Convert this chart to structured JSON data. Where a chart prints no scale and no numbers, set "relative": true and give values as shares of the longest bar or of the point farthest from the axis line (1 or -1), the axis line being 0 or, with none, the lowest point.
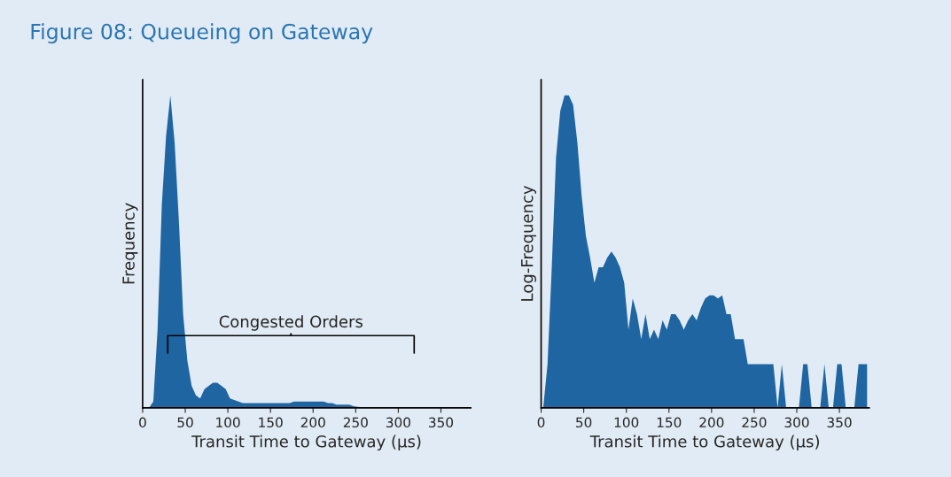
{
  "chart_data": [
    {
      "type": "area",
      "title": "Figure 08: Queueing on Gateway",
      "relative": true,
      "color": "#1f65a2",
      "x": [
        2.5,
        7.5,
        12.5,
        17.5,
        22.5,
        27.5,
        32.5,
        37.5,
        42.5,
        47.5,
        52.5,
        57.5,
        62.5,
        67.5,
        72.5,
        77.5,
        82.5,
        87.5,
        92.5,
        97.5,
        102.5,
        107.5,
        112.5,
        117.5,
        122.5,
        127.5,
        132.5,
        137.5,
        142.5,
        147.5,
        152.5,
        157.5,
        162.5,
        167.5,
        172.5,
        177.5,
        182.5,
        187.5,
        192.5,
        197.5,
        202.5,
        207.5,
        212.5,
        217.5,
        222.5,
        227.5,
        232.5,
        237.5,
        242.5,
        247.5,
        252.5,
        257.5,
        262.5,
        267.5,
        272.5,
        277.5,
        282.5,
        287.5,
        292.5,
        297.5,
        302.5,
        307.5,
        312.5,
        317.5,
        322.5,
        327.5,
        332.5,
        337.5,
        342.5,
        347.5,
        352.5,
        357.5,
        362.5,
        367.5,
        372.5,
        377.5,
        382.5
      ],
      "values": [
        0,
        0,
        0.02,
        0.25,
        0.65,
        0.87,
        1.0,
        0.85,
        0.6,
        0.3,
        0.15,
        0.07,
        0.04,
        0.03,
        0.06,
        0.07,
        0.08,
        0.08,
        0.07,
        0.06,
        0.03,
        0.025,
        0.02,
        0.015,
        0.015,
        0.015,
        0.015,
        0.015,
        0.015,
        0.015,
        0.015,
        0.015,
        0.015,
        0.015,
        0.015,
        0.02,
        0.02,
        0.02,
        0.02,
        0.02,
        0.02,
        0.02,
        0.02,
        0.015,
        0.015,
        0.01,
        0.01,
        0.01,
        0.01,
        0.005,
        0.003,
        0.002,
        0.002,
        0.002,
        0.001,
        0,
        0,
        0,
        0,
        0,
        0,
        0,
        0,
        0,
        0,
        0,
        0,
        0,
        0,
        0,
        0,
        0,
        0,
        0,
        0,
        0,
        0
      ],
      "xlabel": "Transit Time to Gateway (µs)",
      "ylabel": "Frequency",
      "xlim": [
        0,
        385
      ],
      "xticks": [
        0,
        50,
        100,
        150,
        200,
        250,
        300,
        350
      ],
      "annotations": [
        "Congested Orders"
      ]
    },
    {
      "type": "area",
      "relative": true,
      "color": "#1f65a2",
      "x": [
        2.5,
        7.5,
        12.5,
        17.5,
        22.5,
        27.5,
        32.5,
        37.5,
        42.5,
        47.5,
        52.5,
        57.5,
        62.5,
        67.5,
        72.5,
        77.5,
        82.5,
        87.5,
        92.5,
        97.5,
        102.5,
        107.5,
        112.5,
        117.5,
        122.5,
        127.5,
        132.5,
        137.5,
        142.5,
        147.5,
        152.5,
        157.5,
        162.5,
        167.5,
        172.5,
        177.5,
        182.5,
        187.5,
        192.5,
        197.5,
        202.5,
        207.5,
        212.5,
        217.5,
        222.5,
        227.5,
        232.5,
        237.5,
        242.5,
        247.5,
        252.5,
        257.5,
        262.5,
        267.5,
        272.5,
        277.5,
        282.5,
        287.5,
        292.5,
        297.5,
        302.5,
        307.5,
        312.5,
        317.5,
        322.5,
        327.5,
        332.5,
        337.5,
        342.5,
        347.5,
        352.5,
        357.5,
        362.5,
        367.5,
        372.5,
        377.5,
        382.5
      ],
      "values": [
        0,
        0.14,
        0.45,
        0.8,
        0.95,
        1.0,
        1.0,
        0.97,
        0.85,
        0.68,
        0.55,
        0.48,
        0.4,
        0.45,
        0.45,
        0.48,
        0.5,
        0.48,
        0.45,
        0.4,
        0.25,
        0.35,
        0.3,
        0.22,
        0.3,
        0.22,
        0.25,
        0.22,
        0.28,
        0.25,
        0.3,
        0.3,
        0.28,
        0.25,
        0.28,
        0.3,
        0.28,
        0.32,
        0.35,
        0.36,
        0.36,
        0.35,
        0.36,
        0.3,
        0.3,
        0.22,
        0.22,
        0.22,
        0.14,
        0.14,
        0.14,
        0.14,
        0.14,
        0.14,
        0.14,
        0,
        0.14,
        0,
        0,
        0,
        0,
        0.14,
        0.14,
        0,
        0,
        0,
        0.14,
        0,
        0,
        0.14,
        0.14,
        0,
        0,
        0,
        0.14,
        0.14,
        0.14
      ],
      "xlabel": "Transit Time to Gateway (µs)",
      "ylabel": "Log-Frequency",
      "xlim": [
        0,
        385
      ],
      "xticks": [
        0,
        50,
        100,
        150,
        200,
        250,
        300,
        350
      ]
    }
  ]
}
